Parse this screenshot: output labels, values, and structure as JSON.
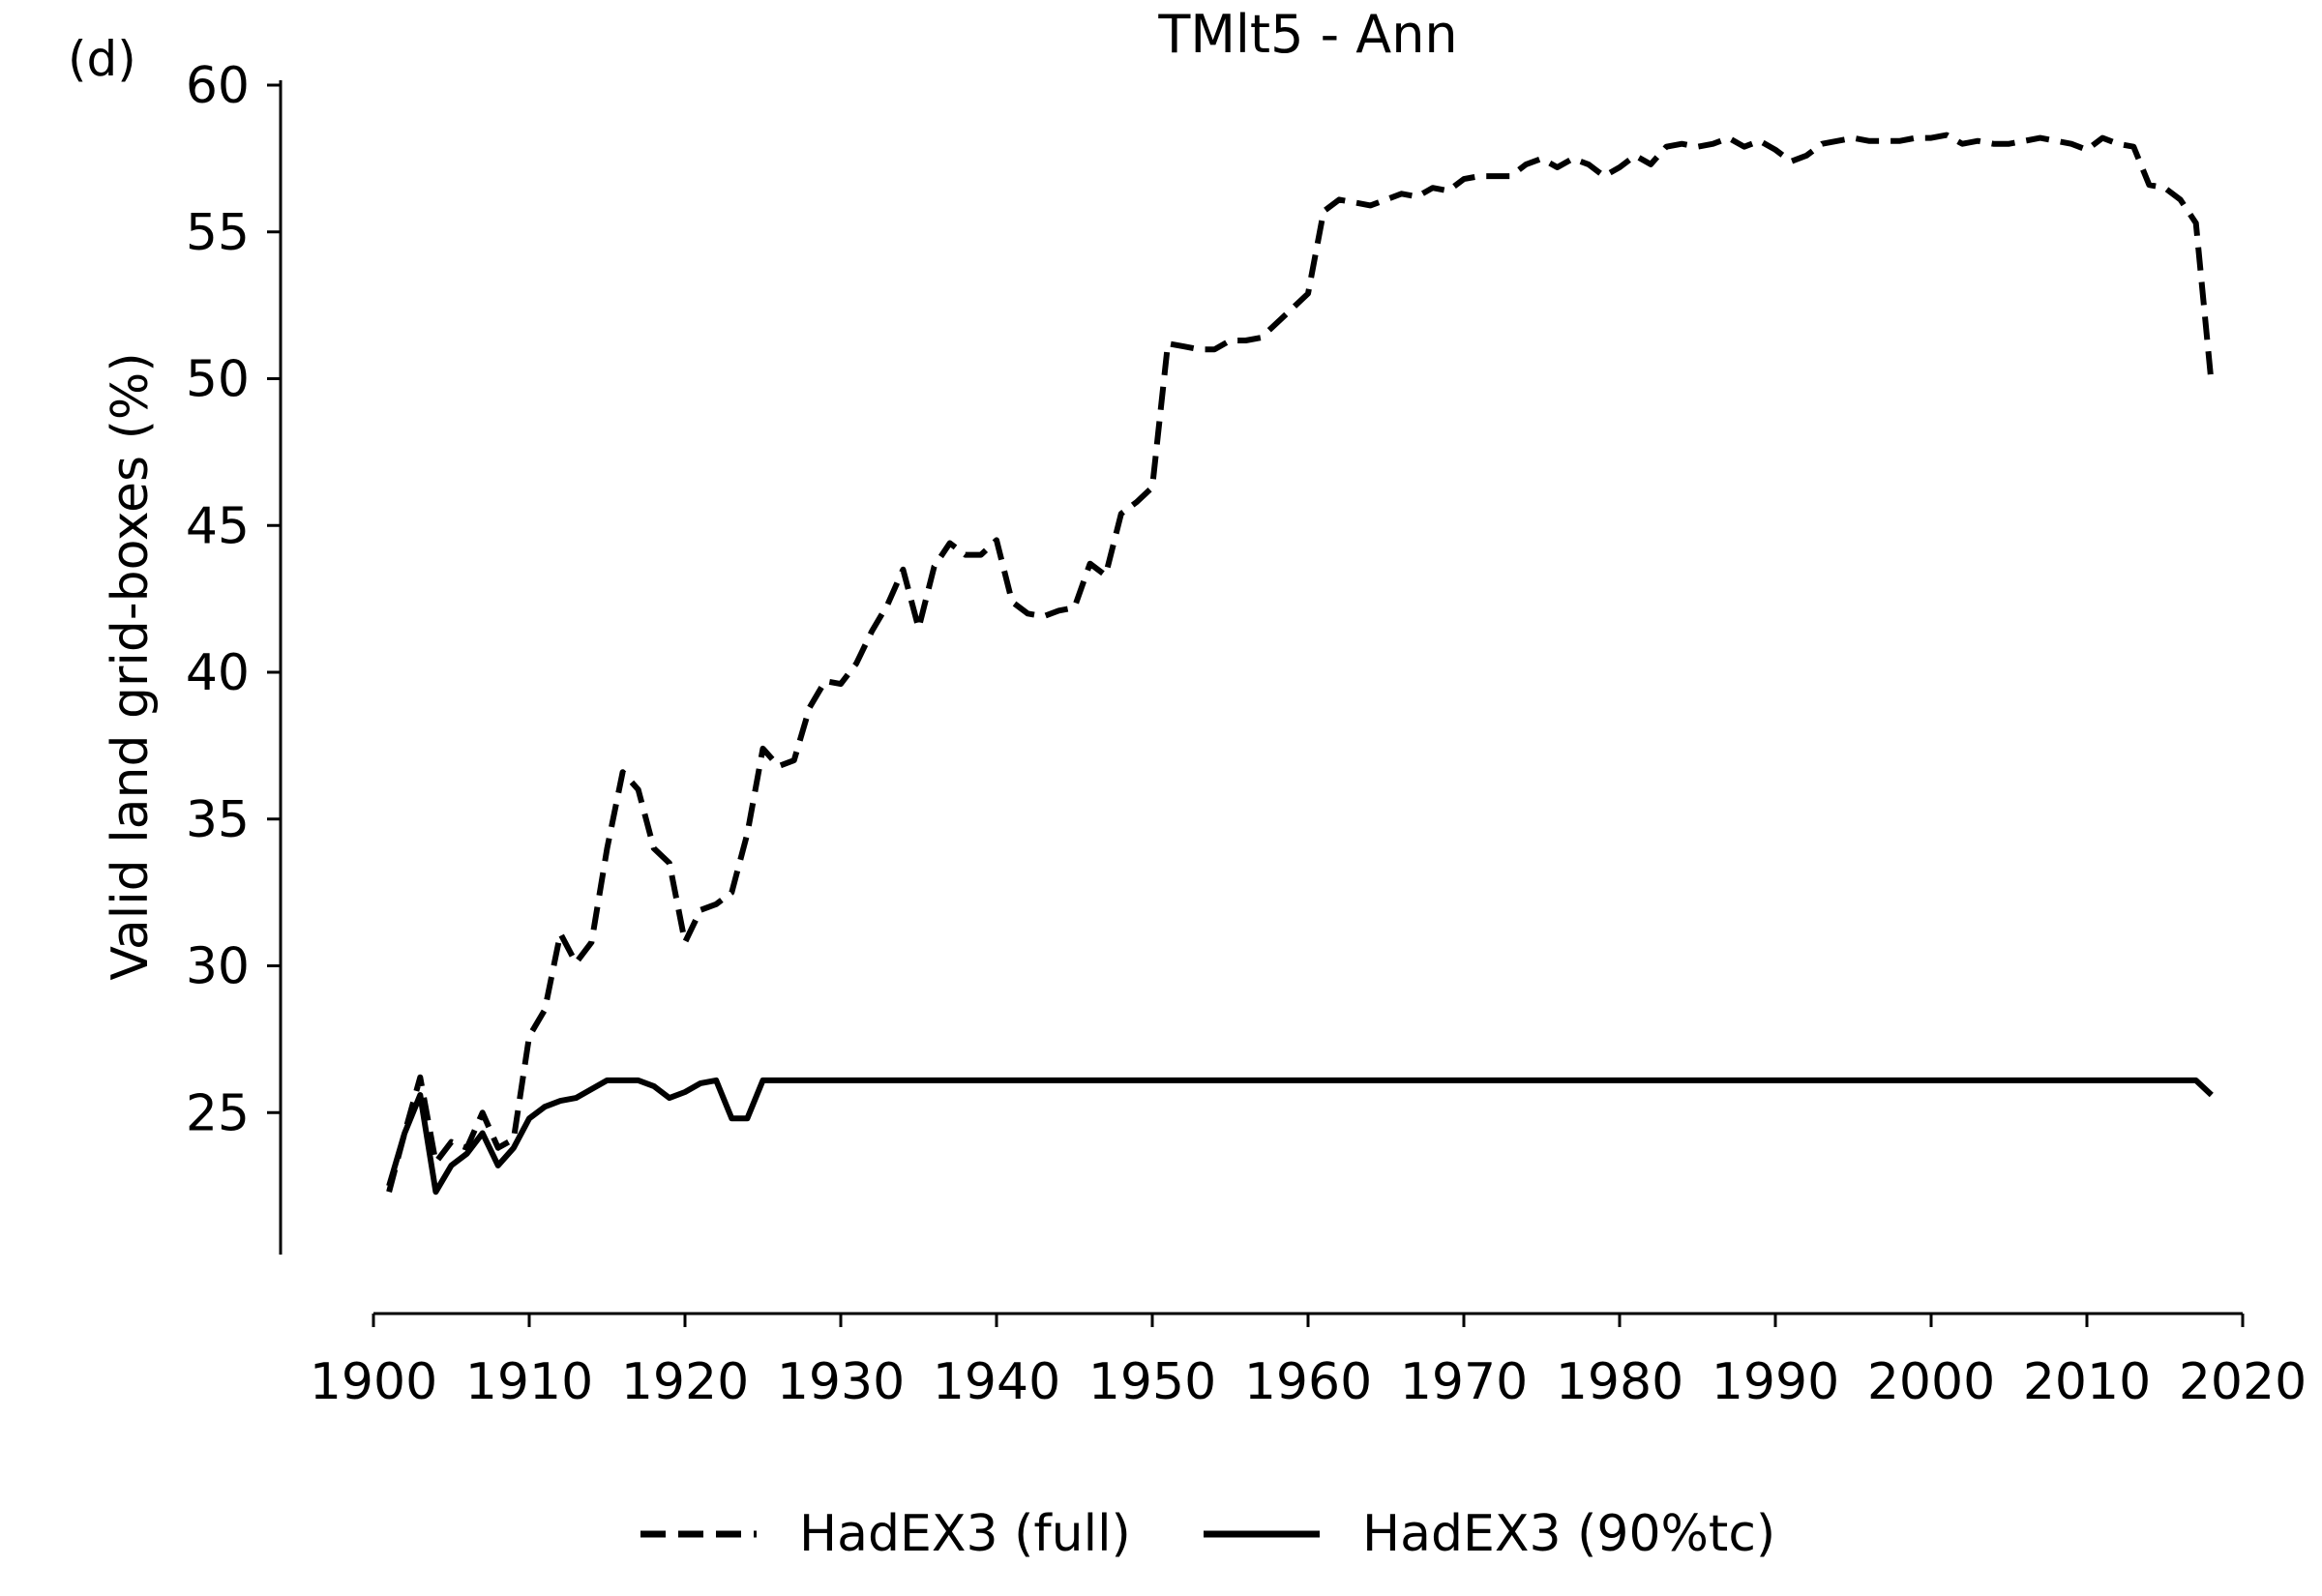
{
  "panel_label": "(d)",
  "chart_data": {
    "type": "line",
    "title": "TMlt5 - Ann",
    "xlabel": "",
    "ylabel": "Valid land grid-boxes (%)",
    "xlim": [
      1895,
      2020
    ],
    "ylim": [
      20,
      60
    ],
    "xticks": [
      1900,
      1910,
      1920,
      1930,
      1940,
      1950,
      1960,
      1970,
      1980,
      1990,
      2000,
      2010,
      2020
    ],
    "yticks": [
      25,
      30,
      35,
      40,
      45,
      50,
      55,
      60
    ],
    "grid": false,
    "legend_position": "bottom-center",
    "colors": {
      "line": "#000000"
    },
    "x": [
      1901,
      1902,
      1903,
      1904,
      1905,
      1906,
      1907,
      1908,
      1909,
      1910,
      1911,
      1912,
      1913,
      1914,
      1915,
      1916,
      1917,
      1918,
      1919,
      1920,
      1921,
      1922,
      1923,
      1924,
      1925,
      1926,
      1927,
      1928,
      1929,
      1930,
      1931,
      1932,
      1933,
      1934,
      1935,
      1936,
      1937,
      1938,
      1939,
      1940,
      1941,
      1942,
      1943,
      1944,
      1945,
      1946,
      1947,
      1948,
      1949,
      1950,
      1951,
      1952,
      1953,
      1954,
      1955,
      1956,
      1957,
      1958,
      1959,
      1960,
      1961,
      1962,
      1963,
      1964,
      1965,
      1966,
      1967,
      1968,
      1969,
      1970,
      1971,
      1972,
      1973,
      1974,
      1975,
      1976,
      1977,
      1978,
      1979,
      1980,
      1981,
      1982,
      1983,
      1984,
      1985,
      1986,
      1987,
      1988,
      1989,
      1990,
      1991,
      1992,
      1993,
      1994,
      1995,
      1996,
      1997,
      1998,
      1999,
      2000,
      2001,
      2002,
      2003,
      2004,
      2005,
      2006,
      2007,
      2008,
      2009,
      2010,
      2011,
      2012,
      2013,
      2014,
      2015,
      2016,
      2017,
      2018
    ],
    "series": [
      {
        "name": "HadEX3 (full)",
        "style": "dashed",
        "values": [
          22.3,
          24.3,
          26.2,
          23.3,
          24.0,
          23.8,
          25.0,
          23.8,
          24.1,
          27.6,
          28.5,
          31.1,
          30.1,
          30.8,
          34.0,
          36.6,
          36.0,
          34.0,
          33.5,
          30.8,
          31.9,
          32.1,
          32.5,
          34.5,
          37.4,
          36.8,
          37.0,
          38.8,
          39.7,
          39.6,
          40.3,
          41.4,
          42.3,
          43.5,
          41.5,
          43.6,
          44.4,
          44.0,
          44.0,
          44.5,
          42.4,
          42.0,
          41.9,
          42.1,
          42.2,
          43.7,
          43.3,
          45.4,
          45.8,
          46.3,
          51.2,
          51.1,
          51.0,
          51.0,
          51.3,
          51.3,
          51.4,
          51.9,
          52.4,
          52.9,
          55.7,
          56.1,
          56.0,
          55.9,
          56.1,
          56.3,
          56.2,
          56.5,
          56.4,
          56.8,
          56.9,
          56.9,
          56.9,
          57.3,
          57.5,
          57.2,
          57.5,
          57.3,
          56.9,
          57.2,
          57.6,
          57.3,
          57.9,
          58.0,
          57.9,
          58.0,
          58.2,
          57.9,
          58.1,
          57.8,
          57.4,
          57.6,
          58.0,
          58.1,
          58.2,
          58.1,
          58.1,
          58.1,
          58.2,
          58.2,
          58.3,
          58.0,
          58.1,
          58.0,
          58.0,
          58.1,
          58.2,
          58.1,
          58.0,
          57.8,
          58.2,
          58.0,
          57.9,
          56.6,
          56.5,
          56.1,
          55.3,
          49.8
        ]
      },
      {
        "name": "HadEX3 (90%tc)",
        "style": "solid",
        "values": [
          22.5,
          24.3,
          25.6,
          22.3,
          23.2,
          23.6,
          24.3,
          23.2,
          23.8,
          24.8,
          25.2,
          25.4,
          25.5,
          25.8,
          26.1,
          26.1,
          26.1,
          25.9,
          25.5,
          25.7,
          26.0,
          26.1,
          24.8,
          24.8,
          26.1,
          26.1,
          26.1,
          26.1,
          26.1,
          26.1,
          26.1,
          26.1,
          26.1,
          26.1,
          26.1,
          26.1,
          26.1,
          26.1,
          26.1,
          26.1,
          26.1,
          26.1,
          26.1,
          26.1,
          26.1,
          26.1,
          26.1,
          26.1,
          26.1,
          26.1,
          26.1,
          26.1,
          26.1,
          26.1,
          26.1,
          26.1,
          26.1,
          26.1,
          26.1,
          26.1,
          26.1,
          26.1,
          26.1,
          26.1,
          26.1,
          26.1,
          26.1,
          26.1,
          26.1,
          26.1,
          26.1,
          26.1,
          26.1,
          26.1,
          26.1,
          26.1,
          26.1,
          26.1,
          26.1,
          26.1,
          26.1,
          26.1,
          26.1,
          26.1,
          26.1,
          26.1,
          26.1,
          26.1,
          26.1,
          26.1,
          26.1,
          26.1,
          26.1,
          26.1,
          26.1,
          26.1,
          26.1,
          26.1,
          26.1,
          26.1,
          26.1,
          26.1,
          26.1,
          26.1,
          26.1,
          26.1,
          26.1,
          26.1,
          26.1,
          26.1,
          26.1,
          26.1,
          26.1,
          26.1,
          26.1,
          26.1,
          26.1,
          25.6
        ]
      }
    ]
  }
}
